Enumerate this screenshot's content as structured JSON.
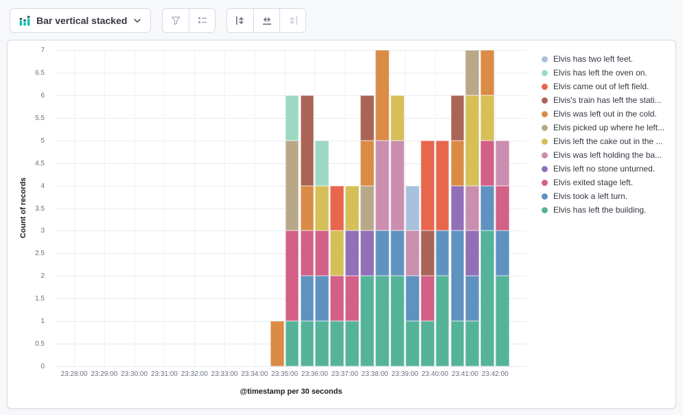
{
  "toolbar": {
    "chart_type": {
      "label": "Bar vertical stacked",
      "icon": "bar-vertical-stacked-icon"
    },
    "chevron_icon": "chevron-down-icon",
    "button_groups": [
      {
        "buttons": [
          {
            "id": "visual-options",
            "icon": "funnel-icon",
            "disabled": true
          },
          {
            "id": "legend-options",
            "icon": "list-icon",
            "disabled": true
          }
        ]
      },
      {
        "buttons": [
          {
            "id": "left-axis",
            "icon": "left-axis-icon",
            "disabled": false
          },
          {
            "id": "bottom-axis",
            "icon": "bottom-axis-icon",
            "disabled": false
          },
          {
            "id": "right-axis",
            "icon": "right-axis-icon",
            "disabled": true
          }
        ]
      }
    ]
  },
  "chart_data": {
    "type": "bar",
    "mode": "stacked-vertical",
    "title": "",
    "ylabel": "Count of records",
    "xlabel": "@timestamp per 30 seconds",
    "ylim": [
      0,
      7
    ],
    "y_tick_step": 0.5,
    "grid": true,
    "legend_position": "right",
    "x_tick_labels": [
      "23:28:00",
      "23:29:00",
      "23:30:00",
      "23:31:00",
      "23:32:00",
      "23:33:00",
      "23:34:00",
      "23:35:00",
      "23:36:00",
      "23:37:00",
      "23:38:00",
      "23:39:00",
      "23:40:00",
      "23:41:00",
      "23:42:00"
    ],
    "bucket_interval_seconds": 30,
    "buckets": [
      "23:34:30",
      "23:35:00",
      "23:35:30",
      "23:36:00",
      "23:36:30",
      "23:37:00",
      "23:37:30",
      "23:38:00",
      "23:38:30",
      "23:39:00",
      "23:39:30",
      "23:40:00",
      "23:40:30",
      "23:41:00",
      "23:41:30",
      "23:42:00"
    ],
    "series": [
      {
        "name": "Elvis has left the building.",
        "color": "#54B399",
        "values": [
          0,
          1,
          1,
          1,
          1,
          1,
          2,
          2,
          2,
          1,
          1,
          2,
          1,
          1,
          3,
          2
        ]
      },
      {
        "name": "Elvis took a left turn.",
        "color": "#6092C0",
        "values": [
          0,
          0,
          1,
          1,
          0,
          0,
          0,
          1,
          1,
          1,
          0,
          1,
          2,
          1,
          1,
          1
        ]
      },
      {
        "name": "Elvis exited stage left.",
        "color": "#D36086",
        "values": [
          0,
          2,
          1,
          1,
          1,
          1,
          0,
          0,
          0,
          0,
          1,
          0,
          0,
          0,
          1,
          1
        ]
      },
      {
        "name": "Elvis left no stone unturned.",
        "color": "#9170B8",
        "values": [
          0,
          0,
          0,
          0,
          0,
          1,
          1,
          0,
          0,
          0,
          0,
          0,
          1,
          1,
          0,
          0
        ]
      },
      {
        "name": "Elvis was left holding the ba...",
        "color": "#CA8EAE",
        "values": [
          0,
          0,
          0,
          0,
          0,
          0,
          0,
          2,
          2,
          1,
          0,
          0,
          0,
          1,
          0,
          1
        ]
      },
      {
        "name": "Elvis left the cake out in the ...",
        "color": "#D6BF57",
        "values": [
          0,
          0,
          0,
          1,
          1,
          1,
          0,
          0,
          1,
          0,
          0,
          0,
          0,
          2,
          1,
          0
        ]
      },
      {
        "name": "Elvis picked up where he left...",
        "color": "#B9A888",
        "values": [
          0,
          2,
          0,
          0,
          0,
          0,
          1,
          0,
          0,
          0,
          0,
          0,
          0,
          1,
          0,
          0
        ]
      },
      {
        "name": "Elvis was left out in the cold.",
        "color": "#DA8B45",
        "values": [
          1,
          0,
          1,
          0,
          0,
          0,
          1,
          2,
          0,
          0,
          0,
          0,
          1,
          0,
          1,
          0
        ]
      },
      {
        "name": "Elvis's train has left the stati...",
        "color": "#AA6556",
        "values": [
          0,
          0,
          2,
          0,
          0,
          0,
          1,
          0,
          0,
          0,
          1,
          0,
          1,
          0,
          0,
          0
        ]
      },
      {
        "name": "Elvis came out of left field.",
        "color": "#E7664C",
        "values": [
          0,
          0,
          0,
          0,
          1,
          0,
          0,
          0,
          0,
          0,
          2,
          2,
          0,
          0,
          0,
          0
        ]
      },
      {
        "name": "Elvis has left the oven on.",
        "color": "#9CD9C2",
        "values": [
          0,
          1,
          0,
          1,
          0,
          0,
          0,
          0,
          0,
          0,
          0,
          0,
          0,
          0,
          0,
          0
        ]
      },
      {
        "name": "Elvis has two left feet.",
        "color": "#A7C1DC",
        "values": [
          0,
          0,
          0,
          0,
          0,
          0,
          0,
          0,
          0,
          1,
          0,
          0,
          0,
          0,
          0,
          0
        ]
      }
    ]
  }
}
